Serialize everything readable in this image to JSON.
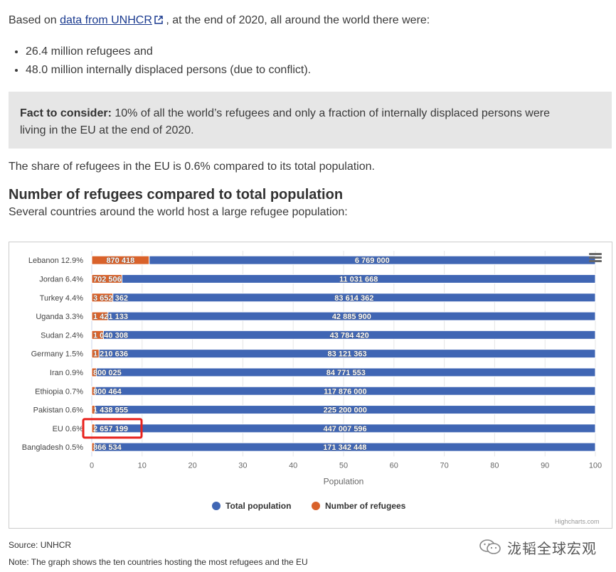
{
  "intro": {
    "before": "Based on ",
    "link": "data from UNHCR",
    "after": ", at the end of 2020, all around the world there were:"
  },
  "facts": [
    "26.4 million refugees and",
    "48.0 million internally displaced persons (due to conflict)."
  ],
  "fact_box": {
    "label": "Fact to consider:",
    "text": " 10% of all the world’s refugees and only a fraction of internally displaced persons were living in the EU at the end of 2020."
  },
  "share_text": "The share of refugees in the EU is 0.6% compared to its total population.",
  "section": {
    "title": "Number of refugees compared to total population",
    "subtitle": "Several countries around the world host a large refugee population:"
  },
  "chart_data": {
    "type": "bar",
    "orientation": "horizontal",
    "stacking": "percent",
    "categories": [
      "Lebanon 12.9%",
      "Jordan 6.4%",
      "Turkey 4.4%",
      "Uganda 3.3%",
      "Sudan 2.4%",
      "Germany 1.5%",
      "Iran 0.9%",
      "Ethiopia 0.7%",
      "Pakistan 0.6%",
      "EU 0.6%",
      "Bangladesh 0.5%"
    ],
    "series": [
      {
        "name": "Total population",
        "color": "#4066b4",
        "values": [
          6769000,
          11031668,
          83614362,
          42885900,
          43784420,
          83121363,
          84771553,
          117876000,
          225200000,
          447007596,
          171342448
        ],
        "labels": [
          "6 769 000",
          "11 031 668",
          "83 614 362",
          "42 885 900",
          "43 784 420",
          "83 121 363",
          "84 771 553",
          "117 876 000",
          "225 200 000",
          "447 007 596",
          "171 342 448"
        ]
      },
      {
        "name": "Number of refugees",
        "color": "#d9622b",
        "values": [
          870418,
          702506,
          3652362,
          1421133,
          1040308,
          1210636,
          800025,
          800464,
          1438955,
          2657199,
          866534
        ],
        "labels": [
          "870 418",
          "702 506",
          "3 652 362",
          "1 421 133",
          "1 040 308",
          "1 210 636",
          "800 025",
          "800 464",
          "1 438 955",
          "2 657 199",
          "866 534"
        ]
      }
    ],
    "x_ticks": [
      "0",
      "10",
      "20",
      "30",
      "40",
      "50",
      "60",
      "70",
      "80",
      "90",
      "100"
    ],
    "xlabel": "Population",
    "xlim": [
      0,
      100
    ],
    "highlight_category": "EU 0.6%",
    "highlight_color": "#e8211c",
    "legend_position": "bottom-center",
    "credits": "Highcharts.com"
  },
  "footer": {
    "source": "Source: UNHCR",
    "note": "Note: The graph shows the ten countries hosting the most refugees and the EU"
  },
  "watermark": "泷韬全球宏观"
}
